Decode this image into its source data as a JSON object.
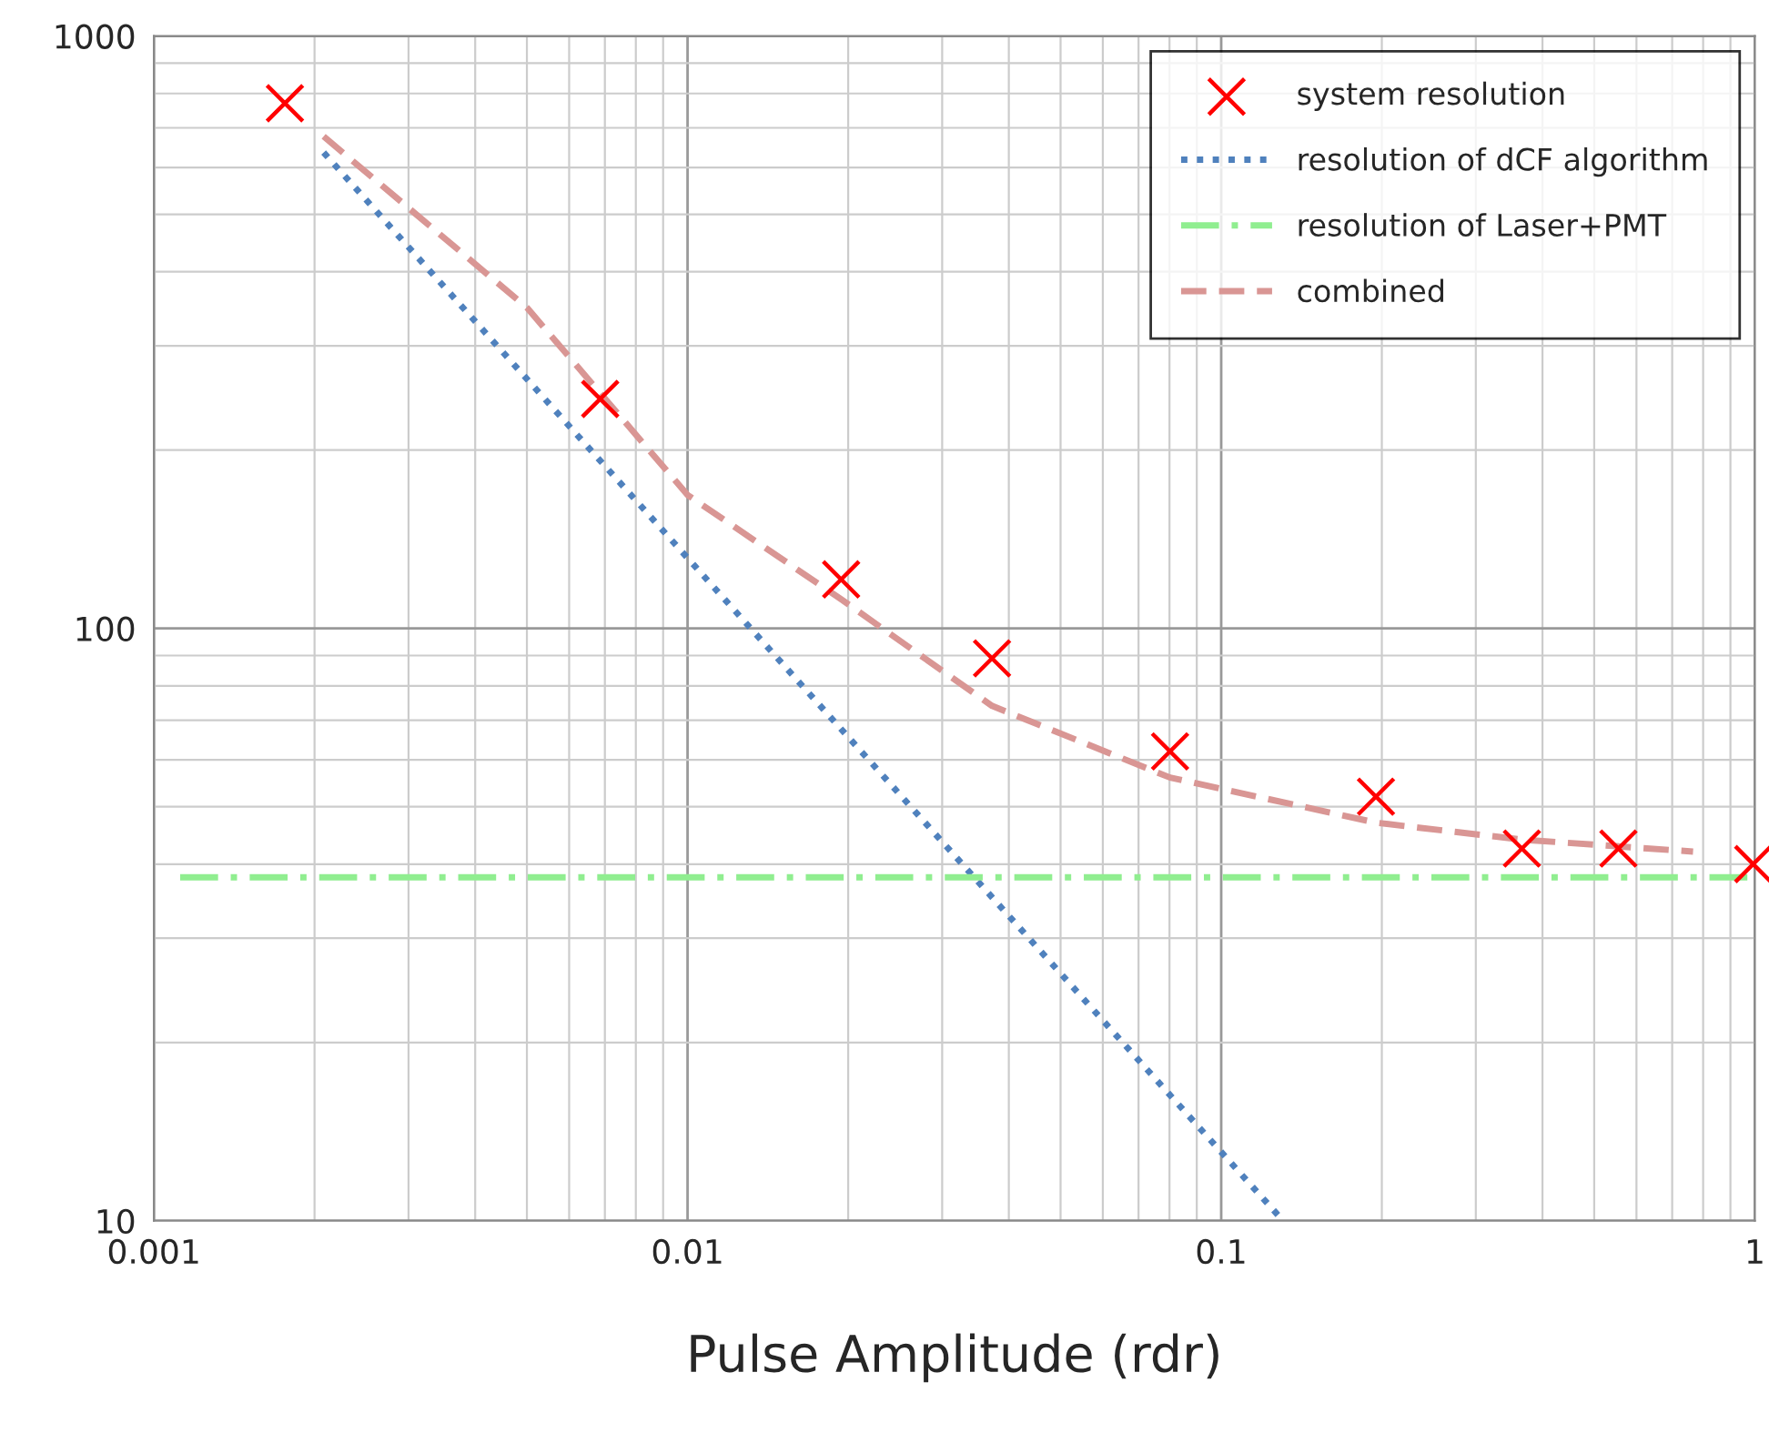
{
  "chart_data": {
    "type": "scatter",
    "xlabel": "Pulse Amplitude (rdr)",
    "log": "xy",
    "xlim": [
      0.001,
      1
    ],
    "ylim": [
      10,
      1000
    ],
    "xticks": [
      0.001,
      0.01,
      0.1,
      1
    ],
    "yticks": [
      10,
      100,
      1000
    ],
    "grid": true,
    "legend": "top right",
    "series": [
      {
        "name": "system resolution",
        "marker": "cross",
        "color": "#ff0000",
        "x": [
          0.00176,
          0.00686,
          0.0194,
          0.0372,
          0.0802,
          0.195,
          0.366,
          0.555,
          0.993
        ],
        "values": [
          770,
          244,
          121,
          89,
          62,
          52,
          42.5,
          42.5,
          40
        ]
      },
      {
        "name": "resolution of dCF algorithm",
        "type": "line",
        "line_style": "dotted",
        "color": "#4f81bd",
        "x": [
          0.00208,
          0.0349,
          0.1306
        ],
        "values": [
          636,
          37.5,
          10
        ]
      },
      {
        "name": "resolution of Laser+PMT",
        "type": "line",
        "line_style": "dashdot",
        "color": "#90ee90",
        "x": [
          0.00112,
          1
        ],
        "values": [
          38,
          38
        ]
      },
      {
        "name": "combined",
        "type": "line",
        "line_style": "dashed",
        "color": "#d99694",
        "x": [
          0.00208,
          0.005,
          0.01,
          0.0194,
          0.0372,
          0.0802,
          0.195,
          0.366,
          0.766
        ],
        "values": [
          677,
          348,
          168,
          112,
          74,
          56,
          47,
          44,
          42
        ]
      }
    ]
  }
}
